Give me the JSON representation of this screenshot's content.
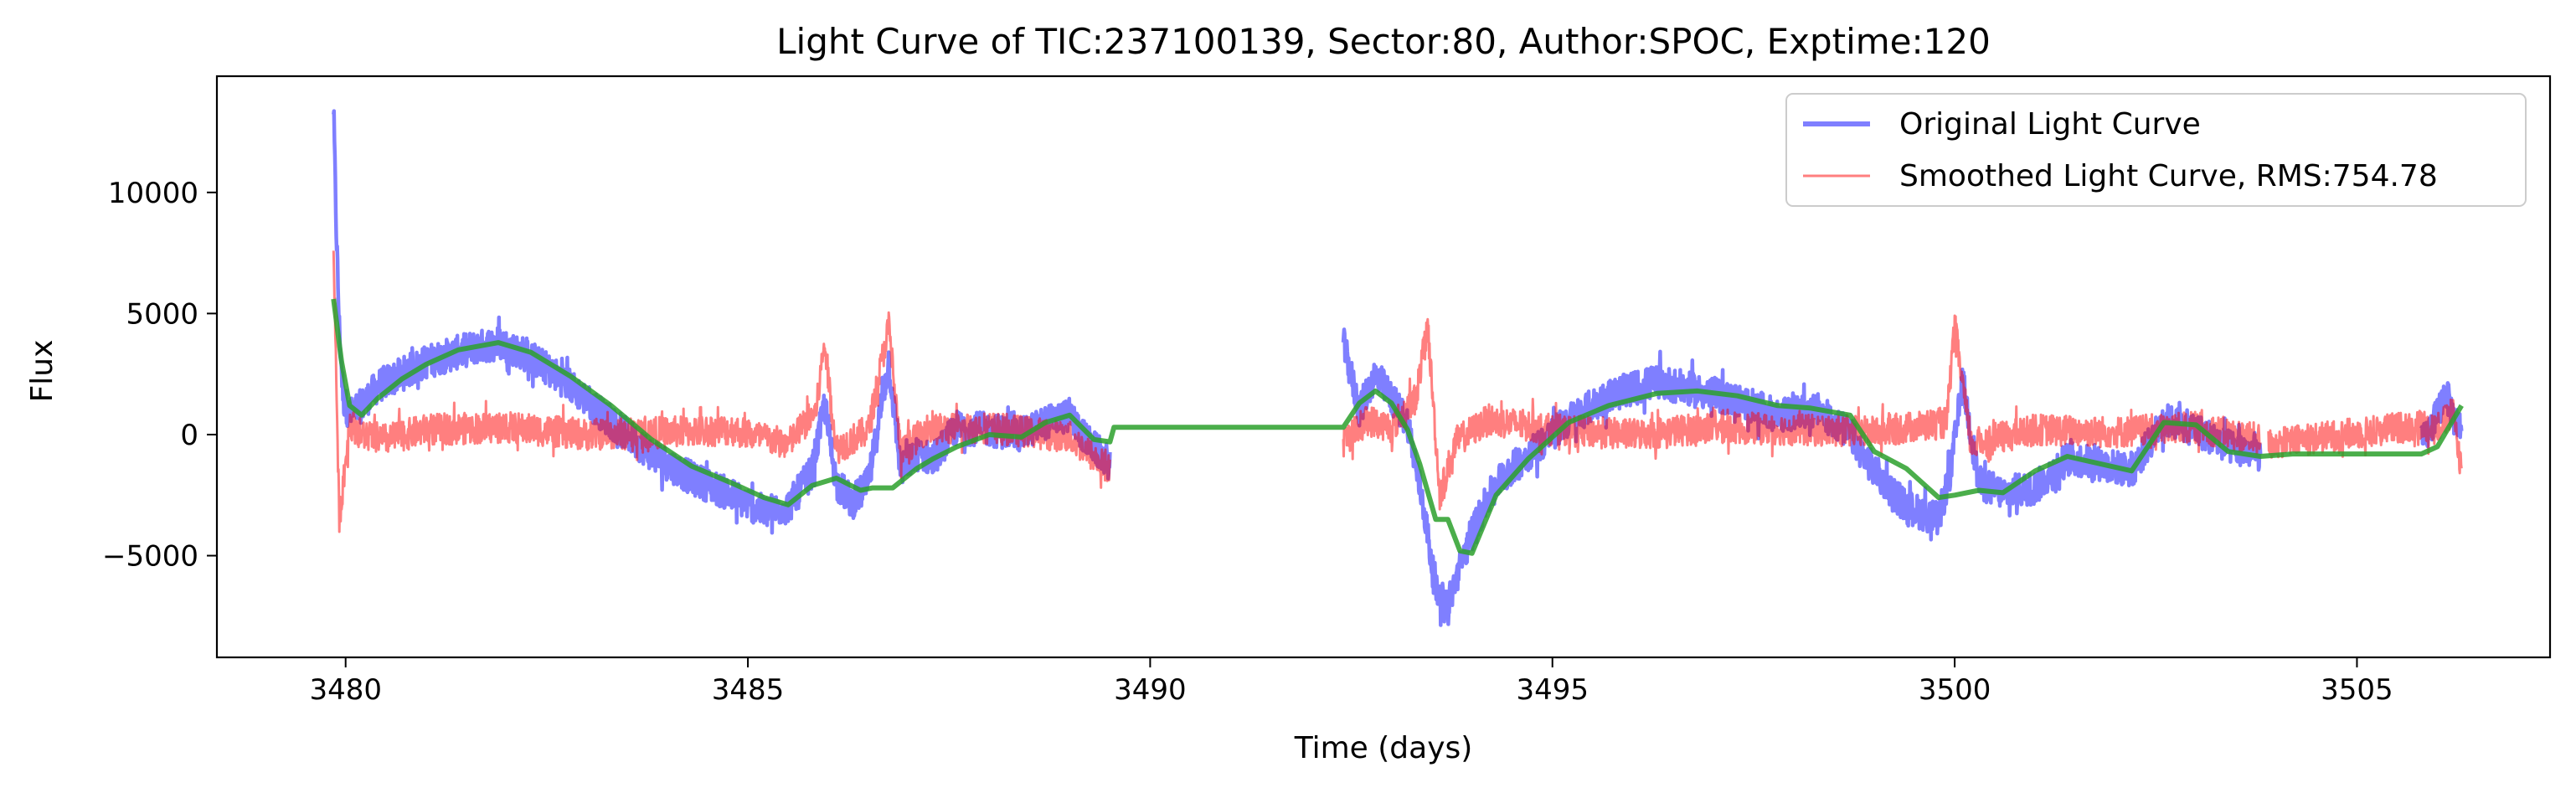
{
  "chart_data": {
    "type": "line",
    "title": "Light Curve of TIC:237100139, Sector:80, Author:SPOC, Exptime:120",
    "xlabel": "Time (days)",
    "ylabel": "Flux",
    "xlim": [
      3478.4,
      3507.4
    ],
    "ylim": [
      -9200,
      14800
    ],
    "xticks": [
      3480,
      3485,
      3490,
      3495,
      3500,
      3505
    ],
    "xtick_labels": [
      "3480",
      "3485",
      "3490",
      "3495",
      "3500",
      "3505"
    ],
    "yticks": [
      -5000,
      0,
      5000,
      10000
    ],
    "ytick_labels": [
      "−5000",
      "0",
      "5000",
      "10000"
    ],
    "grid": false,
    "legend_position": "top-right",
    "legend": [
      {
        "label": "Original Light Curve",
        "color": "#0000ff",
        "opacity": 0.5,
        "width": "thick"
      },
      {
        "label": "Smoothed Light Curve, RMS:754.78",
        "color": "#ff0000",
        "opacity": 0.5,
        "width": "thin"
      }
    ],
    "series": [
      {
        "name": "Original Light Curve",
        "color": "#0000ff",
        "opacity": 0.5,
        "noise": 700,
        "x": [
          3479.85,
          3479.88,
          3479.92,
          3479.97,
          3480.05,
          3480.2,
          3480.4,
          3480.7,
          3481.0,
          3481.5,
          3481.9,
          3482.3,
          3482.8,
          3483.3,
          3483.8,
          3484.3,
          3484.8,
          3485.2,
          3485.5,
          3485.8,
          3485.95,
          3486.1,
          3486.3,
          3486.5,
          3486.75,
          3486.9,
          3487.1,
          3487.3,
          3487.6,
          3488.0,
          3488.4,
          3488.7,
          3489.0,
          3489.2,
          3489.5
        ],
        "y": [
          13500,
          9000,
          4500,
          1500,
          800,
          1200,
          2000,
          2500,
          3000,
          3500,
          3800,
          3200,
          2000,
          500,
          -800,
          -1800,
          -2500,
          -3200,
          -3000,
          -1500,
          1200,
          -2000,
          -2800,
          -2000,
          3000,
          -1500,
          -800,
          -1000,
          300,
          200,
          0,
          500,
          800,
          -200,
          -1200
        ]
      },
      {
        "name": "Original Light Curve",
        "color": "#0000ff",
        "opacity": 0.5,
        "noise": 700,
        "x": [
          3492.4,
          3492.6,
          3492.8,
          3493.0,
          3493.2,
          3493.4,
          3493.55,
          3493.7,
          3493.85,
          3494.0,
          3494.3,
          3494.7,
          3495.2,
          3495.7,
          3496.3,
          3496.8,
          3497.3,
          3497.8,
          3498.3,
          3498.7,
          3499.0,
          3499.4,
          3499.8,
          3499.95,
          3500.1,
          3500.3,
          3500.6,
          3501.0,
          3501.4,
          3501.8,
          3502.2,
          3502.6,
          3503.0,
          3503.4,
          3503.8
        ],
        "y": [
          3800,
          1000,
          2500,
          1500,
          500,
          -3000,
          -6500,
          -7000,
          -5500,
          -4000,
          -2000,
          -800,
          600,
          1600,
          2200,
          1800,
          1400,
          800,
          1000,
          0,
          -1500,
          -3000,
          -3500,
          -1500,
          2200,
          -2000,
          -2400,
          -2200,
          -1000,
          -1200,
          -1500,
          600,
          200,
          -500,
          -800
        ]
      },
      {
        "name": "Original Light Curve",
        "color": "#0000ff",
        "opacity": 0.5,
        "noise": 700,
        "x": [
          3505.8,
          3506.0,
          3506.1,
          3506.2,
          3506.3
        ],
        "y": [
          -400,
          800,
          1800,
          700,
          200
        ]
      },
      {
        "name": "Smoothed Light Curve, RMS:754.78",
        "color": "#ff0000",
        "opacity": 0.5,
        "noise": 650,
        "x": [
          3479.85,
          3479.88,
          3479.92,
          3479.97,
          3480.05,
          3480.2,
          3480.5,
          3481.0,
          3482.0,
          3483.0,
          3484.0,
          3484.8,
          3485.5,
          3485.85,
          3485.95,
          3486.1,
          3486.5,
          3486.75,
          3486.9,
          3487.2,
          3488.0,
          3489.0,
          3489.5
        ],
        "y": [
          8000,
          3000,
          -3500,
          -2000,
          500,
          0,
          -200,
          200,
          300,
          0,
          100,
          200,
          -400,
          1000,
          3800,
          -600,
          200,
          4500,
          -800,
          200,
          300,
          -100,
          -1500
        ]
      },
      {
        "name": "Smoothed Light Curve, RMS:754.78",
        "color": "#ff0000",
        "opacity": 0.5,
        "noise": 650,
        "x": [
          3492.4,
          3492.7,
          3493.0,
          3493.3,
          3493.45,
          3493.6,
          3493.8,
          3494.2,
          3495.0,
          3496.0,
          3497.0,
          3498.0,
          3499.0,
          3499.9,
          3500.0,
          3500.2,
          3501.0,
          3502.0,
          3503.0,
          3503.8
        ],
        "y": [
          -300,
          600,
          300,
          1500,
          4500,
          -2500,
          -300,
          600,
          200,
          0,
          300,
          200,
          100,
          500,
          4500,
          -400,
          200,
          100,
          300,
          -200
        ]
      },
      {
        "name": "Smoothed Light Curve, RMS:754.78",
        "color": "#ff0000",
        "opacity": 0.5,
        "noise": 650,
        "x": [
          3503.9,
          3505.8,
          3506.0,
          3506.2,
          3506.3
        ],
        "y": [
          -400,
          400,
          300,
          900,
          -1500
        ]
      },
      {
        "name": "",
        "color": "#2ca02c",
        "opacity": 0.85,
        "noise": 0,
        "x": [
          3479.85,
          3479.95,
          3480.05,
          3480.2,
          3480.4,
          3480.7,
          3481.0,
          3481.4,
          3481.9,
          3482.3,
          3482.8,
          3483.3,
          3483.8,
          3484.3,
          3484.8,
          3485.2,
          3485.5,
          3485.8,
          3486.1,
          3486.4,
          3486.55,
          3486.8,
          3487.1,
          3487.3,
          3487.6,
          3488.0,
          3488.4,
          3488.7,
          3489.0,
          3489.3,
          3489.5,
          3489.55,
          3492.4,
          3492.6,
          3492.8,
          3493.0,
          3493.2,
          3493.35,
          3493.55,
          3493.7,
          3493.85,
          3494.0,
          3494.3,
          3494.7,
          3495.2,
          3495.7,
          3496.3,
          3496.8,
          3497.3,
          3497.8,
          3498.2,
          3498.7,
          3499.0,
          3499.4,
          3499.8,
          3500.0,
          3500.3,
          3500.6,
          3501.0,
          3501.4,
          3501.8,
          3502.2,
          3502.6,
          3503.0,
          3503.4,
          3503.8,
          3504.2,
          3505.8,
          3506.0,
          3506.3
        ],
        "y": [
          5600,
          3000,
          1200,
          800,
          1500,
          2300,
          2900,
          3500,
          3800,
          3400,
          2400,
          1200,
          -200,
          -1300,
          -2000,
          -2600,
          -2900,
          -2100,
          -1800,
          -2300,
          -2200,
          -2200,
          -1400,
          -1000,
          -500,
          0,
          -100,
          500,
          800,
          -200,
          -300,
          300,
          300,
          1300,
          1800,
          1300,
          200,
          -1200,
          -3500,
          -3500,
          -4800,
          -4900,
          -2500,
          -1000,
          500,
          1200,
          1700,
          1800,
          1600,
          1200,
          1100,
          800,
          -700,
          -1400,
          -2600,
          -2500,
          -2300,
          -2400,
          -1500,
          -900,
          -1200,
          -1500,
          500,
          400,
          -700,
          -900,
          -800,
          -800,
          -500,
          1200
        ]
      }
    ]
  }
}
